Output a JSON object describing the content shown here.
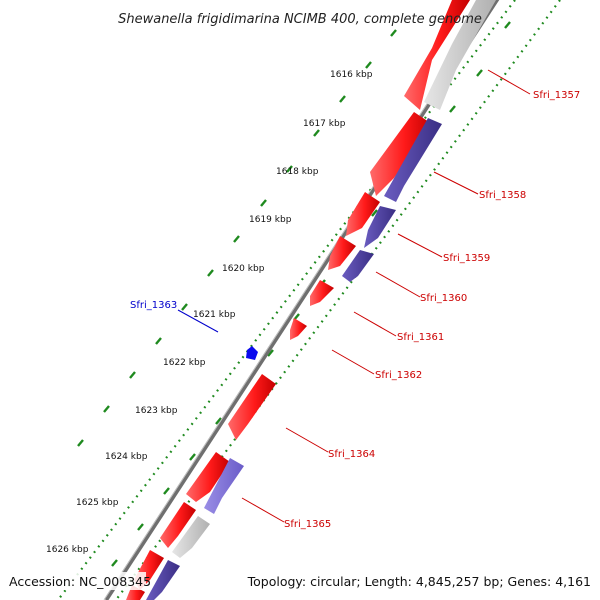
{
  "title": "Shewanella frigidimarina NCIMB 400, complete genome",
  "footer": {
    "accession": "Accession: NC_008345",
    "summary": "Topology: circular; Length: 4,845,257 bp; Genes: 4,161"
  },
  "colors": {
    "backbone": "#8a8a8a",
    "forward_cds": "#ff1a1a",
    "reverse_cds": "#4b3d98",
    "reverse_cds_light": "#7d6fd6",
    "other_feature": "#c9c9c9",
    "label_forward": "#cc0000",
    "label_reverse": "#0000cc",
    "tick_marks": "#1f8a1f"
  },
  "scale_ticks": [
    "1616 kbp",
    "1617 kbp",
    "1618 kbp",
    "1619 kbp",
    "1620 kbp",
    "1621 kbp",
    "1622 kbp",
    "1623 kbp",
    "1624 kbp",
    "1625 kbp",
    "1626 kbp"
  ],
  "gene_labels": {
    "outer_side": [
      "Sfri_1363"
    ],
    "inner_side": [
      "Sfri_1357",
      "Sfri_1358",
      "Sfri_1359",
      "Sfri_1360",
      "Sfri_1361",
      "Sfri_1362",
      "Sfri_1364",
      "Sfri_1365"
    ]
  }
}
